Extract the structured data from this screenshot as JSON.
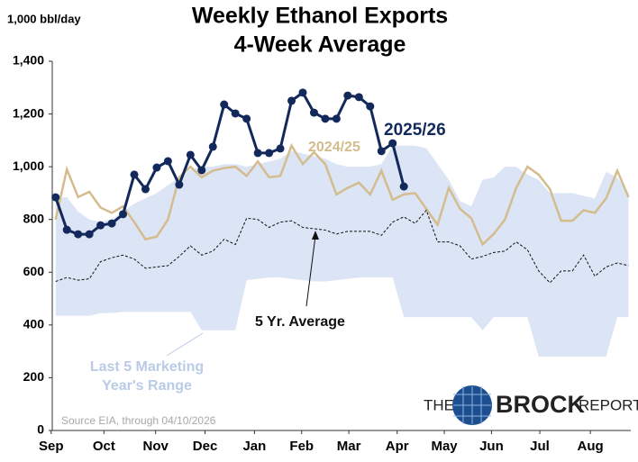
{
  "chart_data": {
    "type": "line",
    "title": [
      "Weekly Ethanol Exports",
      "4-Week Average"
    ],
    "y_unit_label": "1,000 bbl/day",
    "source": "Source EIA, through 04/10/2026",
    "logo_text": [
      "THE",
      "BROCK",
      "REPORT"
    ],
    "x": [
      0,
      1,
      2,
      3,
      4,
      5,
      6,
      7,
      8,
      9,
      10,
      11,
      12,
      13,
      14,
      15,
      16,
      17,
      18,
      19,
      20,
      21,
      22,
      23,
      24,
      25,
      26,
      27,
      28,
      29,
      30,
      31,
      32,
      33,
      34,
      35,
      36,
      37,
      38,
      39,
      40,
      41,
      42,
      43,
      44,
      45,
      46,
      47,
      48,
      49,
      50,
      51
    ],
    "xlim": [
      -0.3,
      51.2
    ],
    "xticks": [
      {
        "value": -0.4,
        "label": "Sep"
      },
      {
        "value": 4.3,
        "label": "Oct"
      },
      {
        "value": 8.9,
        "label": "Nov"
      },
      {
        "value": 13.3,
        "label": "Dec"
      },
      {
        "value": 17.7,
        "label": "Jan"
      },
      {
        "value": 21.9,
        "label": "Feb"
      },
      {
        "value": 26.1,
        "label": "Mar"
      },
      {
        "value": 30.4,
        "label": "Apr"
      },
      {
        "value": 34.6,
        "label": "May"
      },
      {
        "value": 38.8,
        "label": "Jun"
      },
      {
        "value": 43.1,
        "label": "Jul"
      },
      {
        "value": 47.6,
        "label": "Aug"
      }
    ],
    "ylim": [
      0,
      1400
    ],
    "yticks": [
      0,
      200,
      400,
      600,
      800,
      {
        "value": 1000,
        "label": "1,000"
      },
      {
        "value": 1200,
        "label": "1,200"
      },
      {
        "value": 1400,
        "label": "1,400"
      }
    ],
    "range": {
      "name_lines": [
        "Last 5 Marketing",
        "Year's Range"
      ],
      "color": "#dbe5f5",
      "lower": [
        435,
        435,
        435,
        435,
        445,
        445,
        450,
        450,
        450,
        450,
        450,
        450,
        450,
        380,
        380,
        380,
        380,
        570,
        575,
        580,
        580,
        575,
        570,
        565,
        565,
        570,
        575,
        580,
        580,
        580,
        580,
        430,
        430,
        430,
        430,
        430,
        430,
        430,
        380,
        430,
        430,
        430,
        430,
        280,
        280,
        280,
        280,
        280,
        280,
        280,
        430,
        430
      ],
      "upper": [
        880,
        885,
        830,
        800,
        790,
        800,
        830,
        860,
        880,
        900,
        930,
        960,
        990,
        1000,
        1000,
        1010,
        1010,
        1000,
        1010,
        1020,
        1030,
        1060,
        1050,
        1040,
        1030,
        1010,
        1000,
        1000,
        1000,
        1010,
        1080,
        1080,
        1080,
        1070,
        1010,
        950,
        870,
        850,
        950,
        960,
        1000,
        1000,
        970,
        950,
        900,
        900,
        900,
        890,
        880,
        980,
        960,
        900
      ]
    },
    "series": [
      {
        "name": "2025/26",
        "color": "#13295b",
        "values": [
          884,
          761,
          744,
          744,
          778,
          785,
          820,
          970,
          915,
          997,
          1021,
          932,
          1045,
          987,
          1076,
          1236,
          1202,
          1182,
          1052,
          1052,
          1069,
          1250,
          1281,
          1205,
          1182,
          1182,
          1270,
          1264,
          1229,
          1059,
          1089,
          925,
          null,
          null,
          null,
          null,
          null,
          null,
          null,
          null,
          null,
          null,
          null,
          null,
          null,
          null,
          null,
          null,
          null,
          null,
          null,
          null
        ]
      },
      {
        "name": "2024/25",
        "color": "#d4bc8e",
        "values": [
          800,
          990,
          885,
          905,
          845,
          825,
          850,
          790,
          725,
          735,
          800,
          960,
          1000,
          960,
          985,
          995,
          1000,
          965,
          1020,
          960,
          965,
          1080,
          1010,
          1055,
          1010,
          895,
          920,
          940,
          895,
          985,
          875,
          895,
          900,
          840,
          780,
          920,
          840,
          805,
          705,
          745,
          800,
          920,
          1000,
          970,
          915,
          795,
          795,
          835,
          825,
          880,
          985,
          885
        ]
      },
      {
        "name": "5 Yr. Average",
        "color": "#111111",
        "dashed": true,
        "values": [
          565,
          580,
          570,
          575,
          640,
          655,
          665,
          650,
          615,
          620,
          625,
          660,
          700,
          665,
          680,
          725,
          705,
          805,
          800,
          770,
          790,
          795,
          770,
          765,
          760,
          745,
          755,
          755,
          755,
          740,
          790,
          810,
          785,
          835,
          715,
          715,
          700,
          650,
          660,
          675,
          680,
          715,
          685,
          605,
          560,
          605,
          605,
          665,
          585,
          620,
          635,
          625
        ]
      }
    ]
  }
}
